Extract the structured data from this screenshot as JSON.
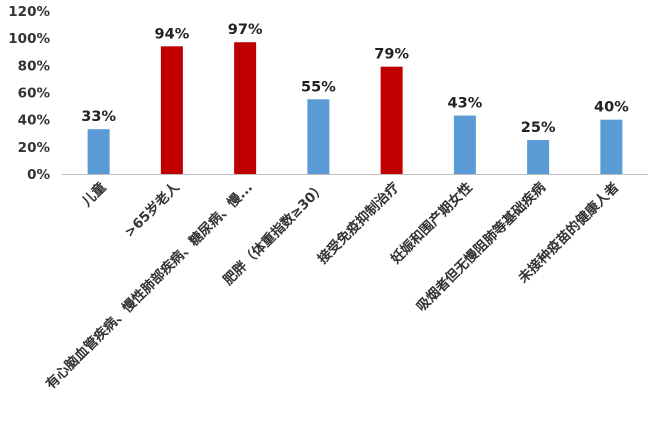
{
  "chart_data": {
    "type": "bar",
    "title": "",
    "xlabel": "",
    "ylabel": "",
    "ylim": [
      0,
      120
    ],
    "ytick_step": 20,
    "ytick_suffix": "%",
    "grid": false,
    "legend": "none",
    "categories": [
      "儿童",
      ">65岁老人",
      "有心脑血管疾病、慢性肺部疾病、糖尿病、慢...",
      "肥胖（体重指数≥30）",
      "接受免疫抑制治疗",
      "妊娠和围产期女性",
      "吸烟者但无慢阻肺等基础疾病",
      "未接种疫苗的健康人者"
    ],
    "values": [
      33,
      94,
      97,
      55,
      79,
      43,
      25,
      40
    ],
    "value_labels": [
      "33%",
      "94%",
      "97%",
      "55%",
      "79%",
      "43%",
      "25%",
      "40%"
    ],
    "bar_colors": [
      "#5b9bd5",
      "#c00000",
      "#c00000",
      "#5b9bd5",
      "#c00000",
      "#5b9bd5",
      "#5b9bd5",
      "#5b9bd5"
    ],
    "axis_color": "#bfbfbf"
  }
}
